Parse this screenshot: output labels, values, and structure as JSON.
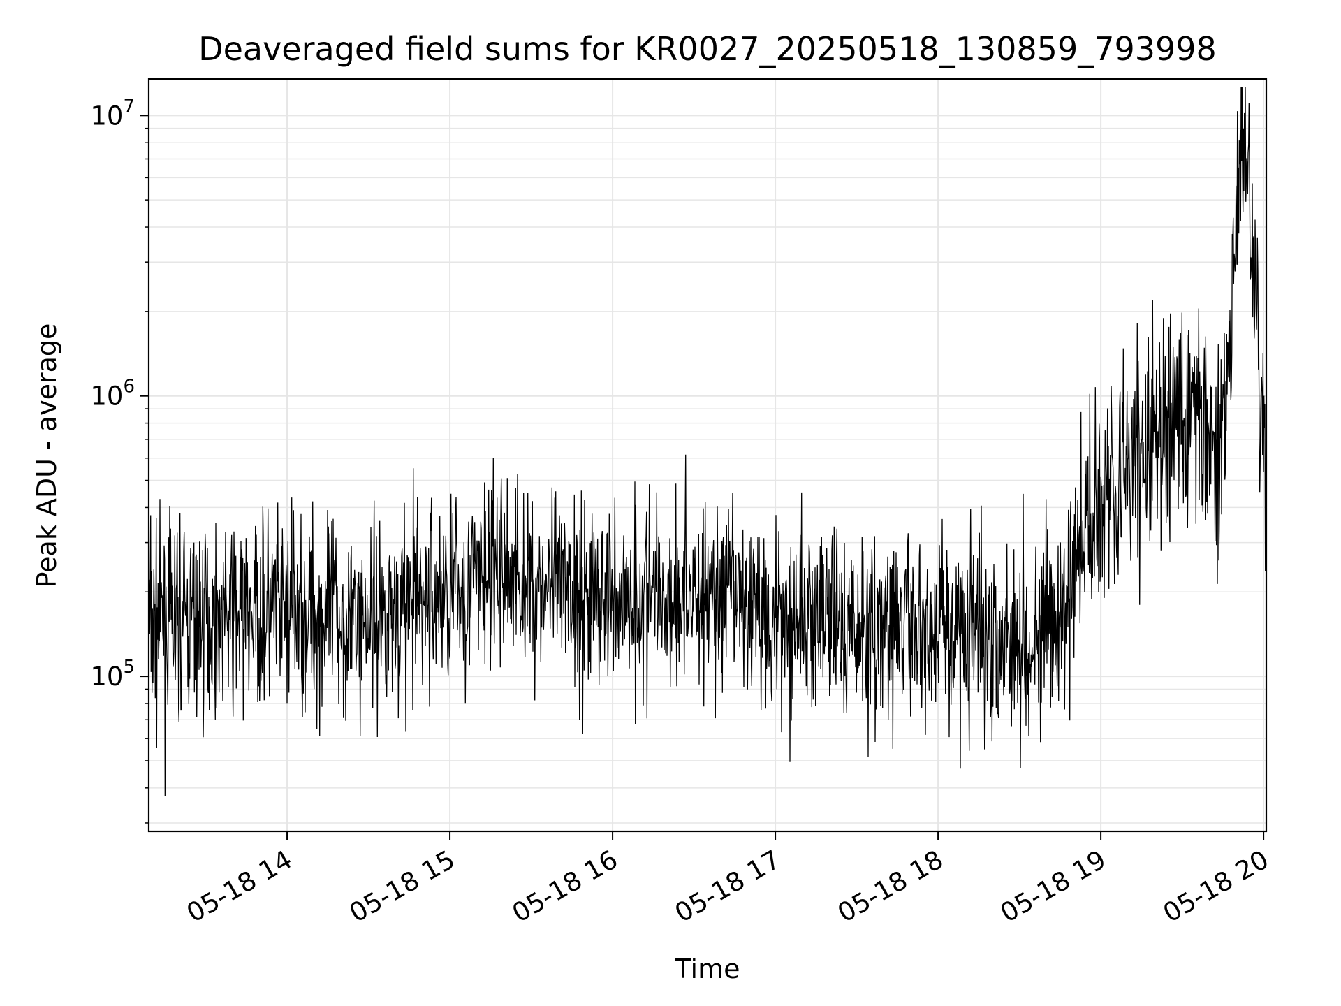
{
  "chart_data": {
    "type": "line",
    "title": "Deaveraged field sums for KR0027_20250518_130859_793998",
    "xlabel": "Time",
    "ylabel": "Peak ADU - average",
    "yscale": "log",
    "grid": true,
    "legend": "none",
    "line_color": "#000000",
    "grid_color": "#e6e6e6",
    "xlim": [
      "2025-05-18 13:09",
      "2025-05-18 20:01"
    ],
    "ylim": [
      28000,
      13500000
    ],
    "x_ticks": [
      "05-18 14",
      "05-18 15",
      "05-18 16",
      "05-18 17",
      "05-18 18",
      "05-18 19",
      "05-18 20"
    ],
    "y_ticks": [
      {
        "base": "10",
        "exp": "5",
        "value": 100000
      },
      {
        "base": "10",
        "exp": "6",
        "value": 1000000
      },
      {
        "base": "10",
        "exp": "7",
        "value": 10000000
      }
    ],
    "series": [
      {
        "x": [
          "2025-05-18 13:09",
          "2025-05-18 13:30",
          "2025-05-18 14:00",
          "2025-05-18 14:30",
          "2025-05-18 15:00",
          "2025-05-18 15:20",
          "2025-05-18 15:30",
          "2025-05-18 16:00",
          "2025-05-18 16:30",
          "2025-05-18 17:00",
          "2025-05-18 17:30",
          "2025-05-18 18:00",
          "2025-05-18 18:30",
          "2025-05-18 18:45",
          "2025-05-18 18:55",
          "2025-05-18 19:00",
          "2025-05-18 19:15",
          "2025-05-18 19:30",
          "2025-05-18 19:45",
          "2025-05-18 19:53",
          "2025-05-18 20:00"
        ],
        "values": [
          150000,
          160000,
          170000,
          160000,
          200000,
          240000,
          210000,
          190000,
          200000,
          170000,
          145000,
          150000,
          140000,
          145000,
          350000,
          480000,
          600000,
          900000,
          700000,
          10200000,
          600000
        ]
      }
    ]
  }
}
